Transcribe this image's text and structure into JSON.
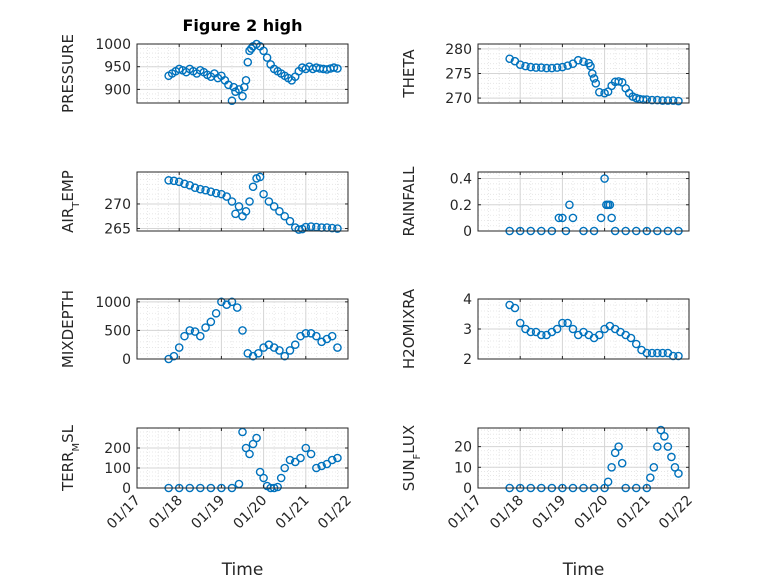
{
  "figure": {
    "title": "Figure 2 high"
  },
  "colors": {
    "marker": "#0072BD",
    "grid": "#d5d5d5",
    "axis": "#262626",
    "background": "#ffffff"
  },
  "x_axis": {
    "label": "Time",
    "ticks": [
      "01/17",
      "01/18",
      "01/19",
      "01/20",
      "01/21",
      "01/22"
    ],
    "range": [
      "01/17",
      "01/22"
    ]
  },
  "chart_data": [
    {
      "type": "scatter",
      "ylabel": "PRESSURE",
      "title": "Figure 2 high",
      "ylim": [
        870,
        1000
      ],
      "yticks": [
        "900",
        "950",
        "1000"
      ],
      "grid": true,
      "x": [
        "01/17 18:00",
        "01/17 20:00",
        "01/17 22:00",
        "01/18 00:00",
        "01/18 02:00",
        "01/18 04:00",
        "01/18 06:00",
        "01/18 08:00",
        "01/18 10:00",
        "01/18 12:00",
        "01/18 14:00",
        "01/18 16:00",
        "01/18 18:00",
        "01/18 20:00",
        "01/18 22:00",
        "01/19 00:00",
        "01/19 02:00",
        "01/19 04:00",
        "01/19 06:00",
        "01/19 07:00",
        "01/19 08:00",
        "01/19 10:00",
        "01/19 12:00",
        "01/19 13:00",
        "01/19 14:00",
        "01/19 15:00",
        "01/19 16:00",
        "01/19 17:00",
        "01/19 18:00",
        "01/19 20:00",
        "01/19 22:00",
        "01/20 00:00",
        "01/20 02:00",
        "01/20 04:00",
        "01/20 06:00",
        "01/20 08:00",
        "01/20 10:00",
        "01/20 12:00",
        "01/20 14:00",
        "01/20 16:00",
        "01/20 18:00",
        "01/20 20:00",
        "01/20 22:00",
        "01/21 00:00",
        "01/21 02:00",
        "01/21 04:00",
        "01/21 06:00",
        "01/21 08:00",
        "01/21 10:00",
        "01/21 12:00",
        "01/21 14:00",
        "01/21 16:00",
        "01/21 18:00"
      ],
      "y": [
        930,
        935,
        940,
        945,
        942,
        938,
        945,
        940,
        935,
        942,
        938,
        932,
        928,
        935,
        925,
        930,
        920,
        910,
        875,
        905,
        895,
        900,
        885,
        905,
        920,
        960,
        985,
        990,
        995,
        1000,
        995,
        985,
        970,
        955,
        945,
        940,
        935,
        930,
        925,
        920,
        928,
        940,
        948,
        945,
        950,
        945,
        948,
        946,
        945,
        944,
        946,
        948,
        946
      ]
    },
    {
      "type": "scatter",
      "ylabel": "THETA",
      "ylim": [
        269,
        281
      ],
      "yticks": [
        "270",
        "275",
        "280"
      ],
      "grid": true,
      "x": [
        "01/17 18:00",
        "01/17 21:00",
        "01/18 00:00",
        "01/18 03:00",
        "01/18 06:00",
        "01/18 09:00",
        "01/18 12:00",
        "01/18 15:00",
        "01/18 18:00",
        "01/18 21:00",
        "01/19 00:00",
        "01/19 03:00",
        "01/19 06:00",
        "01/19 09:00",
        "01/19 12:00",
        "01/19 15:00",
        "01/19 16:00",
        "01/19 17:00",
        "01/19 18:00",
        "01/19 19:00",
        "01/19 21:00",
        "01/20 00:00",
        "01/20 02:00",
        "01/20 04:00",
        "01/20 06:00",
        "01/20 08:00",
        "01/20 10:00",
        "01/20 12:00",
        "01/20 14:00",
        "01/20 16:00",
        "01/20 18:00",
        "01/20 20:00",
        "01/20 22:00",
        "01/21 00:00",
        "01/21 03:00",
        "01/21 06:00",
        "01/21 09:00",
        "01/21 12:00",
        "01/21 15:00",
        "01/21 18:00"
      ],
      "y": [
        278,
        277.5,
        276.8,
        276.5,
        276.3,
        276.2,
        276.2,
        276.1,
        276.1,
        276.2,
        276.3,
        276.6,
        277,
        277.7,
        277.4,
        277.1,
        276.5,
        275,
        274,
        273,
        271.2,
        271,
        271.3,
        272.5,
        273.3,
        273.4,
        273.2,
        272,
        271,
        270.3,
        270,
        269.8,
        269.7,
        269.7,
        269.6,
        269.6,
        269.5,
        269.5,
        269.5,
        269.4
      ]
    },
    {
      "type": "scatter",
      "ylabel": "AIR_TEMP",
      "ylim": [
        264.5,
        276.5
      ],
      "yticks": [
        "265",
        "270"
      ],
      "grid": true,
      "x": [
        "01/17 18:00",
        "01/17 21:00",
        "01/18 00:00",
        "01/18 03:00",
        "01/18 06:00",
        "01/18 09:00",
        "01/18 12:00",
        "01/18 15:00",
        "01/18 18:00",
        "01/18 21:00",
        "01/19 00:00",
        "01/19 03:00",
        "01/19 06:00",
        "01/19 08:00",
        "01/19 10:00",
        "01/19 12:00",
        "01/19 14:00",
        "01/19 16:00",
        "01/19 18:00",
        "01/19 20:00",
        "01/19 22:00",
        "01/20 00:00",
        "01/20 03:00",
        "01/20 06:00",
        "01/20 09:00",
        "01/20 12:00",
        "01/20 15:00",
        "01/20 18:00",
        "01/20 20:00",
        "01/20 22:00",
        "01/21 00:00",
        "01/21 03:00",
        "01/21 06:00",
        "01/21 09:00",
        "01/21 12:00",
        "01/21 15:00",
        "01/21 18:00"
      ],
      "y": [
        274.8,
        274.7,
        274.5,
        274.1,
        273.8,
        273.3,
        273,
        272.8,
        272.5,
        272.2,
        272,
        271.5,
        270.5,
        268,
        269.5,
        267.5,
        268.5,
        270.5,
        273.5,
        275.2,
        275.5,
        272,
        270.5,
        269.5,
        268.5,
        267.5,
        266.5,
        265.2,
        264.8,
        264.9,
        265.3,
        265.4,
        265.3,
        265.2,
        265.2,
        265.1,
        265
      ]
    },
    {
      "type": "scatter",
      "ylabel": "RAINFALL",
      "ylim": [
        0,
        0.45
      ],
      "yticks": [
        "0",
        "0.2",
        "0.4"
      ],
      "grid": true,
      "x": [
        "01/17 18:00",
        "01/18 00:00",
        "01/18 06:00",
        "01/18 12:00",
        "01/18 18:00",
        "01/18 22:00",
        "01/19 00:00",
        "01/19 02:00",
        "01/19 04:00",
        "01/19 06:00",
        "01/19 12:00",
        "01/19 18:00",
        "01/19 22:00",
        "01/20 00:00",
        "01/20 01:00",
        "01/20 02:00",
        "01/20 03:00",
        "01/20 04:00",
        "01/20 06:00",
        "01/20 12:00",
        "01/20 18:00",
        "01/21 00:00",
        "01/21 06:00",
        "01/21 12:00",
        "01/21 18:00"
      ],
      "y": [
        0,
        0,
        0,
        0,
        0,
        0.1,
        0.1,
        0,
        0.2,
        0.1,
        0,
        0,
        0.1,
        0.4,
        0.2,
        0.2,
        0.2,
        0.1,
        0,
        0,
        0,
        0,
        0,
        0,
        0
      ]
    },
    {
      "type": "scatter",
      "ylabel": "MIXDEPTH",
      "ylim": [
        0,
        1050
      ],
      "yticks": [
        "0",
        "500",
        "1000"
      ],
      "grid": true,
      "x": [
        "01/17 18:00",
        "01/17 21:00",
        "01/18 00:00",
        "01/18 03:00",
        "01/18 06:00",
        "01/18 09:00",
        "01/18 12:00",
        "01/18 15:00",
        "01/18 18:00",
        "01/18 21:00",
        "01/19 00:00",
        "01/19 03:00",
        "01/19 06:00",
        "01/19 09:00",
        "01/19 12:00",
        "01/19 15:00",
        "01/19 18:00",
        "01/19 21:00",
        "01/20 00:00",
        "01/20 03:00",
        "01/20 06:00",
        "01/20 09:00",
        "01/20 12:00",
        "01/20 15:00",
        "01/20 18:00",
        "01/20 21:00",
        "01/21 00:00",
        "01/21 03:00",
        "01/21 06:00",
        "01/21 09:00",
        "01/21 12:00",
        "01/21 15:00",
        "01/21 18:00"
      ],
      "y": [
        0,
        50,
        200,
        400,
        500,
        480,
        400,
        550,
        650,
        800,
        1000,
        950,
        1000,
        900,
        500,
        100,
        50,
        100,
        200,
        250,
        200,
        150,
        50,
        150,
        250,
        400,
        450,
        450,
        400,
        300,
        350,
        400,
        200
      ]
    },
    {
      "type": "scatter",
      "ylabel": "H2OMIXRA",
      "ylim": [
        2,
        4
      ],
      "yticks": [
        "2",
        "3",
        "4"
      ],
      "grid": true,
      "x": [
        "01/17 18:00",
        "01/17 21:00",
        "01/18 00:00",
        "01/18 03:00",
        "01/18 06:00",
        "01/18 09:00",
        "01/18 12:00",
        "01/18 15:00",
        "01/18 18:00",
        "01/18 21:00",
        "01/19 00:00",
        "01/19 03:00",
        "01/19 06:00",
        "01/19 09:00",
        "01/19 12:00",
        "01/19 15:00",
        "01/19 18:00",
        "01/19 21:00",
        "01/20 00:00",
        "01/20 03:00",
        "01/20 06:00",
        "01/20 09:00",
        "01/20 12:00",
        "01/20 15:00",
        "01/20 18:00",
        "01/20 21:00",
        "01/21 00:00",
        "01/21 03:00",
        "01/21 06:00",
        "01/21 09:00",
        "01/21 12:00",
        "01/21 15:00",
        "01/21 18:00"
      ],
      "y": [
        3.8,
        3.7,
        3.2,
        3,
        2.9,
        2.9,
        2.8,
        2.8,
        2.9,
        3,
        3.2,
        3.2,
        3,
        2.8,
        2.9,
        2.8,
        2.7,
        2.8,
        3,
        3.1,
        3,
        2.9,
        2.8,
        2.7,
        2.5,
        2.3,
        2.2,
        2.2,
        2.2,
        2.2,
        2.2,
        2.1,
        2.1
      ]
    },
    {
      "type": "scatter",
      "ylabel": "TERR_MSL",
      "ylim": [
        0,
        300
      ],
      "yticks": [
        "0",
        "100",
        "200"
      ],
      "grid": true,
      "x": [
        "01/17 18:00",
        "01/18 00:00",
        "01/18 06:00",
        "01/18 12:00",
        "01/18 18:00",
        "01/19 00:00",
        "01/19 06:00",
        "01/19 10:00",
        "01/19 12:00",
        "01/19 14:00",
        "01/19 16:00",
        "01/19 18:00",
        "01/19 20:00",
        "01/19 22:00",
        "01/20 00:00",
        "01/20 02:00",
        "01/20 04:00",
        "01/20 06:00",
        "01/20 08:00",
        "01/20 10:00",
        "01/20 12:00",
        "01/20 15:00",
        "01/20 18:00",
        "01/20 21:00",
        "01/21 00:00",
        "01/21 03:00",
        "01/21 06:00",
        "01/21 09:00",
        "01/21 12:00",
        "01/21 15:00",
        "01/21 18:00"
      ],
      "y": [
        0,
        0,
        0,
        0,
        0,
        0,
        0,
        20,
        280,
        200,
        170,
        220,
        250,
        80,
        50,
        10,
        0,
        0,
        5,
        50,
        100,
        140,
        130,
        150,
        200,
        170,
        100,
        110,
        120,
        140,
        150
      ]
    },
    {
      "type": "scatter",
      "ylabel": "SUN_FLUX",
      "ylim": [
        0,
        29
      ],
      "yticks": [
        "0",
        "10",
        "20"
      ],
      "grid": true,
      "x": [
        "01/17 18:00",
        "01/18 00:00",
        "01/18 06:00",
        "01/18 12:00",
        "01/18 18:00",
        "01/19 00:00",
        "01/19 06:00",
        "01/19 12:00",
        "01/19 18:00",
        "01/20 00:00",
        "01/20 02:00",
        "01/20 04:00",
        "01/20 06:00",
        "01/20 08:00",
        "01/20 10:00",
        "01/20 12:00",
        "01/20 18:00",
        "01/21 00:00",
        "01/21 02:00",
        "01/21 04:00",
        "01/21 06:00",
        "01/21 08:00",
        "01/21 10:00",
        "01/21 12:00",
        "01/21 14:00",
        "01/21 16:00",
        "01/21 18:00"
      ],
      "y": [
        0,
        0,
        0,
        0,
        0,
        0,
        0,
        0,
        0,
        0,
        3,
        10,
        17,
        20,
        12,
        0,
        0,
        0,
        5,
        10,
        20,
        28,
        25,
        20,
        15,
        10,
        7
      ]
    }
  ]
}
